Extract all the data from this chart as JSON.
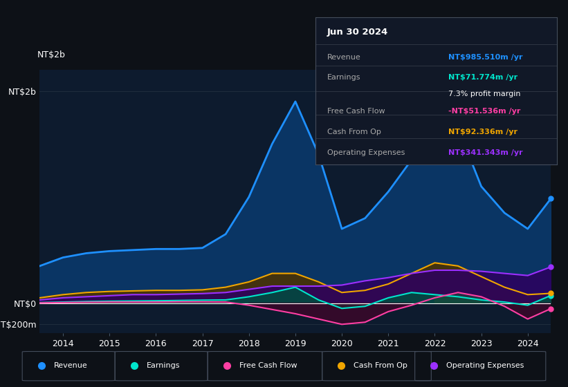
{
  "bg_color": "#0d1117",
  "plot_bg_color": "#0d1b2e",
  "grid_color": "#1e2d3d",
  "years": [
    2013.5,
    2014.0,
    2014.5,
    2015.0,
    2015.5,
    2016.0,
    2016.5,
    2017.0,
    2017.5,
    2018.0,
    2018.5,
    2019.0,
    2019.5,
    2020.0,
    2020.5,
    2021.0,
    2021.5,
    2022.0,
    2022.5,
    2023.0,
    2023.5,
    2024.0,
    2024.5
  ],
  "revenue": [
    350,
    430,
    470,
    490,
    500,
    510,
    510,
    520,
    650,
    1000,
    1500,
    1900,
    1400,
    700,
    800,
    1050,
    1350,
    1750,
    1650,
    1100,
    850,
    700,
    986
  ],
  "earnings": [
    5,
    10,
    15,
    18,
    20,
    22,
    25,
    28,
    30,
    60,
    100,
    150,
    30,
    -50,
    -30,
    50,
    100,
    80,
    60,
    30,
    10,
    -20,
    72
  ],
  "free_cash_flow": [
    2,
    5,
    8,
    10,
    10,
    10,
    12,
    12,
    10,
    -20,
    -60,
    -100,
    -150,
    -200,
    -180,
    -80,
    -20,
    50,
    100,
    60,
    -30,
    -150,
    -52
  ],
  "cash_from_op": [
    50,
    80,
    100,
    110,
    115,
    120,
    120,
    125,
    150,
    200,
    280,
    280,
    200,
    100,
    120,
    180,
    280,
    380,
    350,
    250,
    150,
    80,
    92
  ],
  "op_expenses": [
    30,
    50,
    60,
    70,
    80,
    80,
    85,
    90,
    100,
    130,
    160,
    160,
    160,
    170,
    210,
    240,
    280,
    310,
    310,
    300,
    280,
    260,
    341
  ],
  "revenue_color": "#1e90ff",
  "earnings_color": "#00e5cc",
  "free_cash_flow_color": "#ff3fa4",
  "cash_from_op_color": "#f0a500",
  "op_expenses_color": "#9b30ff",
  "revenue_fill_color": "#0a3a6e",
  "earnings_fill_color": "#004d40",
  "fcf_neg_fill_color": "#4d0028",
  "fcf_pos_fill_color": "#1a4d3a",
  "cash_from_op_fill_color": "#4d3200",
  "op_expenses_fill_color": "#2d0060",
  "ylim_min": -280,
  "ylim_max": 2200,
  "yticks": [
    -200,
    0,
    2000
  ],
  "ytick_labels": [
    "-NT$200m",
    "NT$0",
    "NT$2b"
  ],
  "xlabel_year_start": 2014,
  "xlabel_year_end": 2024,
  "legend_labels": [
    "Revenue",
    "Earnings",
    "Free Cash Flow",
    "Cash From Op",
    "Operating Expenses"
  ],
  "tooltip_date": "Jun 30 2024",
  "tooltip_revenue_label": "Revenue",
  "tooltip_revenue_val": "NT$985.510m /yr",
  "tooltip_earnings_label": "Earnings",
  "tooltip_earnings_val": "NT$71.774m /yr",
  "tooltip_profit_margin": "7.3% profit margin",
  "tooltip_fcf_label": "Free Cash Flow",
  "tooltip_fcf_val": "-NT$51.536m /yr",
  "tooltip_cashop_label": "Cash From Op",
  "tooltip_cashop_val": "NT$92.336m /yr",
  "tooltip_opex_label": "Operating Expenses",
  "tooltip_opex_val": "NT$341.343m /yr"
}
